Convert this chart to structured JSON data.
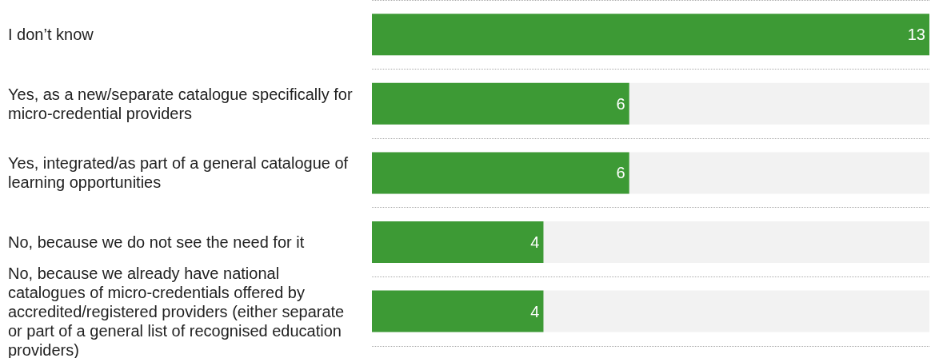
{
  "chart_data": {
    "type": "bar",
    "orientation": "horizontal",
    "categories": [
      "I don’t know",
      "Yes, as a new/separate catalogue specifically for micro-credential providers",
      "Yes, integrated/as part of a general catalogue of learning opportunities",
      "No, because we do not see the need for it",
      "No, because we already have national catalogues of micro-credentials offered by accredited/registered providers (either separate or part of a general list of recognised education providers)"
    ],
    "values": [
      13,
      6,
      6,
      4,
      4
    ],
    "color": "#3d9a35",
    "data_labels": true,
    "grid": "y"
  }
}
